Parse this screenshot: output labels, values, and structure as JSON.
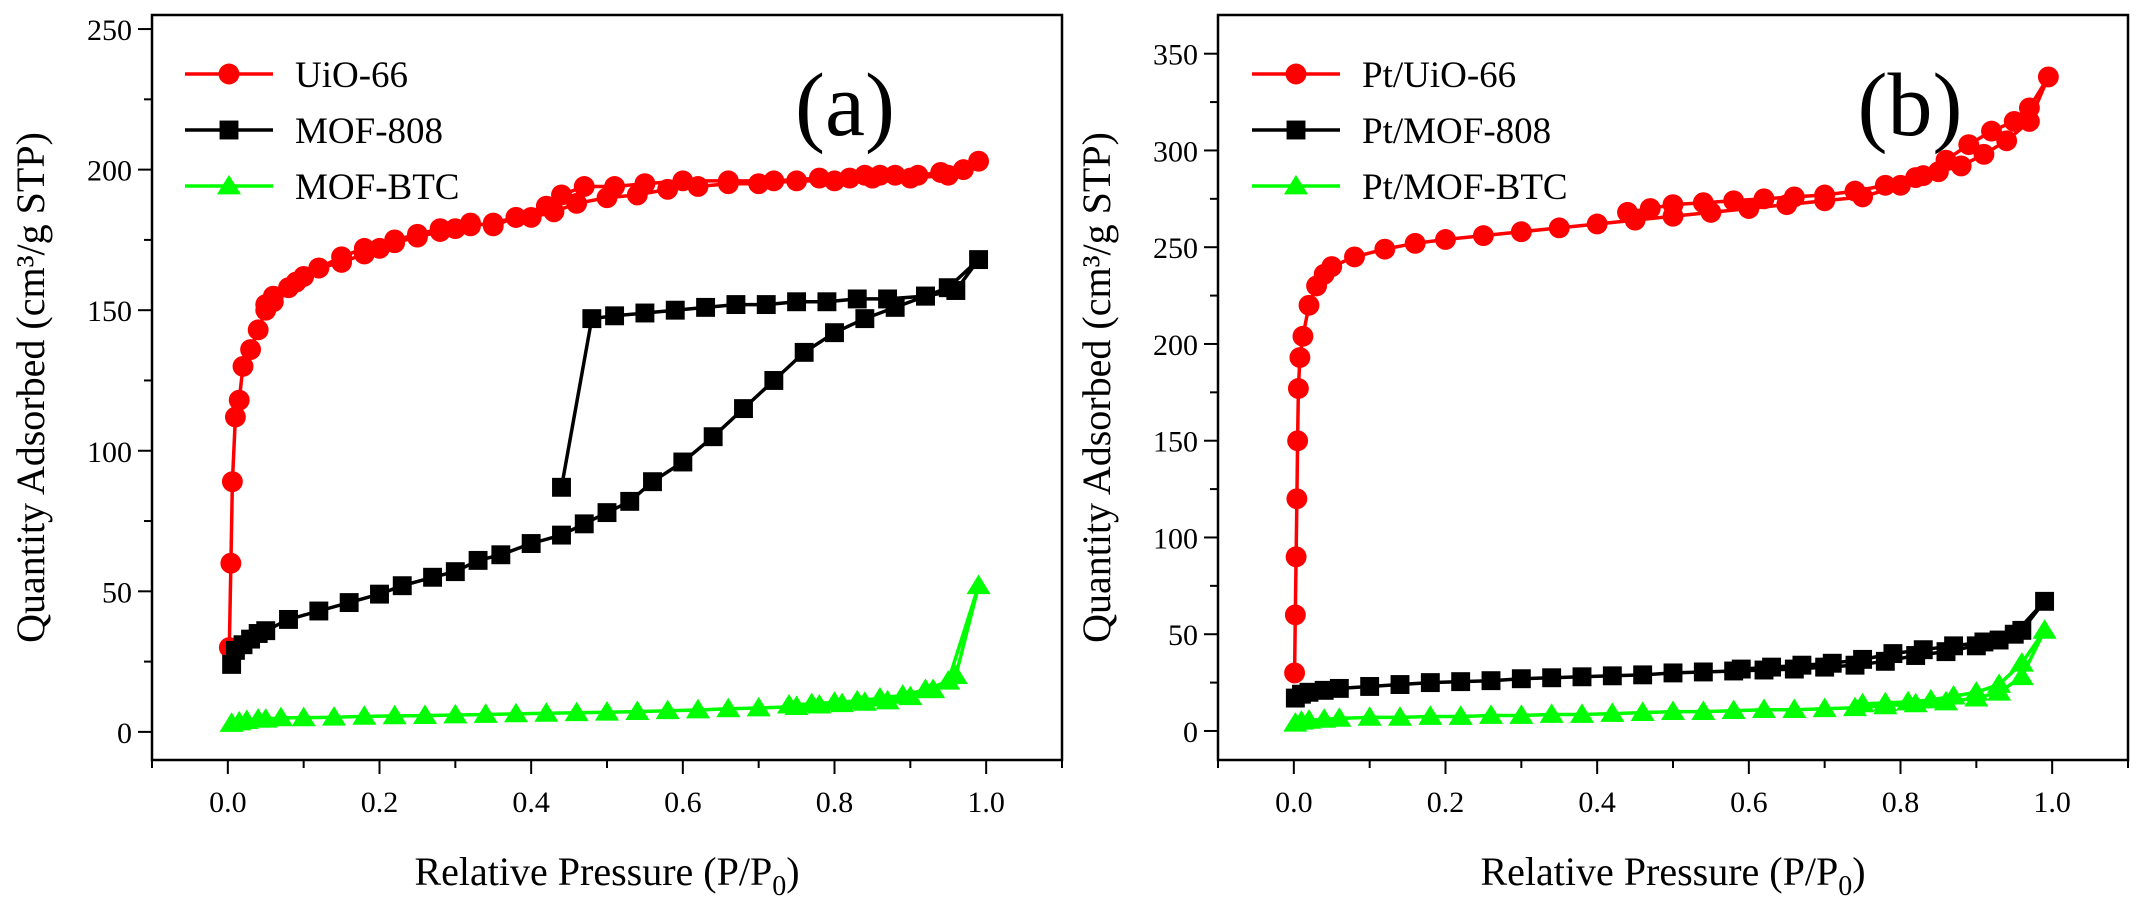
{
  "chart_data": [
    {
      "type": "line",
      "panel_label": "(a)",
      "xlabel_main": "Relative Pressure (P/P",
      "xlabel_sub": "0",
      "xlabel_close": ")",
      "ylabel": "Quantity Adsorbed (cm³/g STP)",
      "xlim": [
        -0.1,
        1.1
      ],
      "ylim": [
        -10,
        255
      ],
      "xticks": [
        0.0,
        0.2,
        0.4,
        0.6,
        0.8,
        1.0
      ],
      "xtick_labels": [
        "0.0",
        "0.2",
        "0.4",
        "0.6",
        "0.8",
        "1.0"
      ],
      "yticks": [
        0,
        50,
        100,
        150,
        200,
        250
      ],
      "ytick_labels": [
        "0",
        "50",
        "100",
        "150",
        "200",
        "250"
      ],
      "legend_position": "top-left",
      "series": [
        {
          "name": "UiO-66",
          "color": "#ff0000",
          "marker": "circle",
          "x": [
            0.002,
            0.004,
            0.006,
            0.01,
            0.015,
            0.02,
            0.03,
            0.04,
            0.05,
            0.06,
            0.08,
            0.1,
            0.12,
            0.15,
            0.18,
            0.2,
            0.22,
            0.25,
            0.28,
            0.3,
            0.32,
            0.35,
            0.38,
            0.4,
            0.43,
            0.46,
            0.5,
            0.54,
            0.58,
            0.62,
            0.66,
            0.7,
            0.75,
            0.8,
            0.85,
            0.9,
            0.95,
            0.99,
            0.97,
            0.94,
            0.91,
            0.88,
            0.86,
            0.84,
            0.82,
            0.78,
            0.72,
            0.66,
            0.6,
            0.55,
            0.51,
            0.47,
            0.44,
            0.42,
            0.38,
            0.35,
            0.32,
            0.28,
            0.25,
            0.22,
            0.18,
            0.15,
            0.12,
            0.09,
            0.06,
            0.05
          ],
          "y": [
            30,
            60,
            89,
            112,
            118,
            130,
            136,
            143,
            150,
            153,
            158,
            162,
            165,
            167,
            170,
            172,
            174,
            176,
            178,
            179,
            180,
            181,
            183,
            183,
            185,
            188,
            190,
            191,
            193,
            194,
            195,
            195,
            196,
            196,
            197,
            197,
            198,
            203,
            200,
            199,
            198,
            198,
            198,
            198,
            197,
            197,
            196,
            196,
            196,
            195,
            194,
            194,
            191,
            187,
            183,
            180,
            181,
            179,
            177,
            175,
            172,
            169,
            165,
            160,
            155,
            152
          ]
        },
        {
          "name": "MOF-808",
          "color": "#000000",
          "marker": "square",
          "x": [
            0.005,
            0.01,
            0.02,
            0.03,
            0.04,
            0.05,
            0.08,
            0.12,
            0.16,
            0.2,
            0.23,
            0.27,
            0.3,
            0.33,
            0.36,
            0.4,
            0.44,
            0.47,
            0.5,
            0.53,
            0.56,
            0.6,
            0.64,
            0.68,
            0.72,
            0.76,
            0.8,
            0.84,
            0.88,
            0.92,
            0.95,
            0.99,
            0.96,
            0.92,
            0.87,
            0.83,
            0.79,
            0.75,
            0.71,
            0.67,
            0.63,
            0.59,
            0.55,
            0.51,
            0.48,
            0.44
          ],
          "y": [
            24,
            29,
            31,
            33,
            35,
            36,
            40,
            43,
            46,
            49,
            52,
            55,
            57,
            61,
            63,
            67,
            70,
            74,
            78,
            82,
            89,
            96,
            105,
            115,
            125,
            135,
            142,
            147,
            151,
            155,
            158,
            168,
            157,
            155,
            154,
            154,
            153,
            153,
            152,
            152,
            151,
            150,
            149,
            148,
            147,
            87
          ]
        },
        {
          "name": "MOF-BTC",
          "color": "#00ff00",
          "marker": "triangle",
          "x": [
            0.005,
            0.015,
            0.025,
            0.04,
            0.05,
            0.07,
            0.1,
            0.14,
            0.18,
            0.22,
            0.26,
            0.3,
            0.34,
            0.38,
            0.42,
            0.46,
            0.5,
            0.54,
            0.58,
            0.62,
            0.66,
            0.7,
            0.75,
            0.78,
            0.81,
            0.84,
            0.87,
            0.9,
            0.93,
            0.96,
            0.99,
            0.95,
            0.92,
            0.89,
            0.86,
            0.83,
            0.8,
            0.77,
            0.74
          ],
          "y": [
            3,
            3.5,
            4,
            4.5,
            4.5,
            5,
            5,
            5.2,
            5.5,
            5.7,
            5.8,
            6,
            6.2,
            6.4,
            6.6,
            6.8,
            7,
            7.2,
            7.5,
            7.8,
            8.2,
            8.5,
            9,
            9.5,
            10,
            10.5,
            11,
            12.5,
            15,
            20,
            52,
            18,
            15,
            13,
            12,
            11,
            10.5,
            10,
            9.5
          ]
        }
      ]
    },
    {
      "type": "line",
      "panel_label": "(b)",
      "xlabel_main": "Relative Pressure (P/P",
      "xlabel_sub": "0",
      "xlabel_close": ")",
      "ylabel": "Quantity Adsorbed (cm³/g STP)",
      "xlim": [
        -0.1,
        1.1
      ],
      "ylim": [
        -15,
        370
      ],
      "xticks": [
        0.0,
        0.2,
        0.4,
        0.6,
        0.8,
        1.0
      ],
      "xtick_labels": [
        "0.0",
        "0.2",
        "0.4",
        "0.6",
        "0.8",
        "1.0"
      ],
      "yticks": [
        0,
        50,
        100,
        150,
        200,
        250,
        300,
        350
      ],
      "ytick_labels": [
        "0",
        "50",
        "100",
        "150",
        "200",
        "250",
        "300",
        "350"
      ],
      "legend_position": "top-left",
      "series": [
        {
          "name": "Pt/UiO-66",
          "color": "#ff0000",
          "marker": "circle",
          "x": [
            0.001,
            0.002,
            0.003,
            0.004,
            0.005,
            0.006,
            0.008,
            0.012,
            0.02,
            0.03,
            0.04,
            0.05,
            0.08,
            0.12,
            0.16,
            0.2,
            0.25,
            0.3,
            0.35,
            0.4,
            0.45,
            0.5,
            0.55,
            0.6,
            0.65,
            0.7,
            0.75,
            0.8,
            0.83,
            0.86,
            0.89,
            0.92,
            0.95,
            0.97,
            0.995,
            0.97,
            0.94,
            0.91,
            0.88,
            0.85,
            0.82,
            0.78,
            0.74,
            0.7,
            0.66,
            0.62,
            0.58,
            0.54,
            0.5,
            0.47,
            0.44
          ],
          "y": [
            30,
            60,
            90,
            120,
            150,
            177,
            193,
            204,
            220,
            230,
            236,
            240,
            245,
            249,
            252,
            254,
            256,
            258,
            260,
            262,
            264,
            266,
            268,
            270,
            272,
            274,
            276,
            282,
            287,
            295,
            303,
            310,
            315,
            322,
            338,
            315,
            305,
            298,
            292,
            289,
            286,
            282,
            279,
            277,
            276,
            275,
            274,
            273,
            272,
            270,
            268
          ]
        },
        {
          "name": "Pt/MOF-808",
          "color": "#000000",
          "marker": "square",
          "x": [
            0.002,
            0.01,
            0.02,
            0.04,
            0.06,
            0.1,
            0.14,
            0.18,
            0.22,
            0.26,
            0.3,
            0.34,
            0.38,
            0.42,
            0.46,
            0.5,
            0.54,
            0.58,
            0.62,
            0.66,
            0.7,
            0.74,
            0.78,
            0.82,
            0.86,
            0.9,
            0.93,
            0.96,
            0.99,
            0.95,
            0.91,
            0.87,
            0.83,
            0.79,
            0.75,
            0.71,
            0.67,
            0.63,
            0.59
          ],
          "y": [
            17,
            19,
            20,
            21,
            22,
            23,
            24,
            25,
            25.5,
            26,
            27,
            27.5,
            28,
            28.5,
            29,
            30,
            30.5,
            31,
            31.5,
            32,
            33,
            34,
            36,
            39,
            41,
            44,
            47,
            52,
            67,
            50,
            46,
            44,
            42,
            40,
            37,
            35,
            34,
            33,
            32
          ]
        },
        {
          "name": "Pt/MOF-BTC",
          "color": "#00ff00",
          "marker": "triangle",
          "x": [
            0.002,
            0.01,
            0.02,
            0.04,
            0.06,
            0.1,
            0.14,
            0.18,
            0.22,
            0.26,
            0.3,
            0.34,
            0.38,
            0.42,
            0.46,
            0.5,
            0.54,
            0.58,
            0.62,
            0.66,
            0.7,
            0.74,
            0.78,
            0.82,
            0.86,
            0.9,
            0.93,
            0.96,
            0.99,
            0.96,
            0.93,
            0.9,
            0.87,
            0.84,
            0.81,
            0.78,
            0.75
          ],
          "y": [
            4,
            5,
            5.5,
            6,
            6.5,
            7,
            7,
            7.5,
            7.5,
            8,
            8,
            8.5,
            8.5,
            9,
            9.5,
            10,
            10,
            10.5,
            11,
            11,
            11.5,
            12,
            13,
            14,
            15,
            17,
            20,
            28,
            52,
            35,
            24,
            20,
            18,
            16,
            15,
            14.5,
            14
          ]
        }
      ]
    }
  ]
}
